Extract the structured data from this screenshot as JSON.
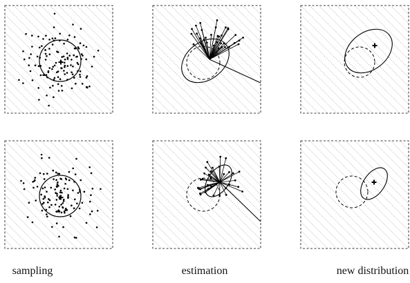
{
  "captions": {
    "sampling": "sampling",
    "estimation": "estimation",
    "new_distribution": "new distribution"
  },
  "colors": {
    "ink": "#000000",
    "hatch": "#9a9a9a"
  }
}
